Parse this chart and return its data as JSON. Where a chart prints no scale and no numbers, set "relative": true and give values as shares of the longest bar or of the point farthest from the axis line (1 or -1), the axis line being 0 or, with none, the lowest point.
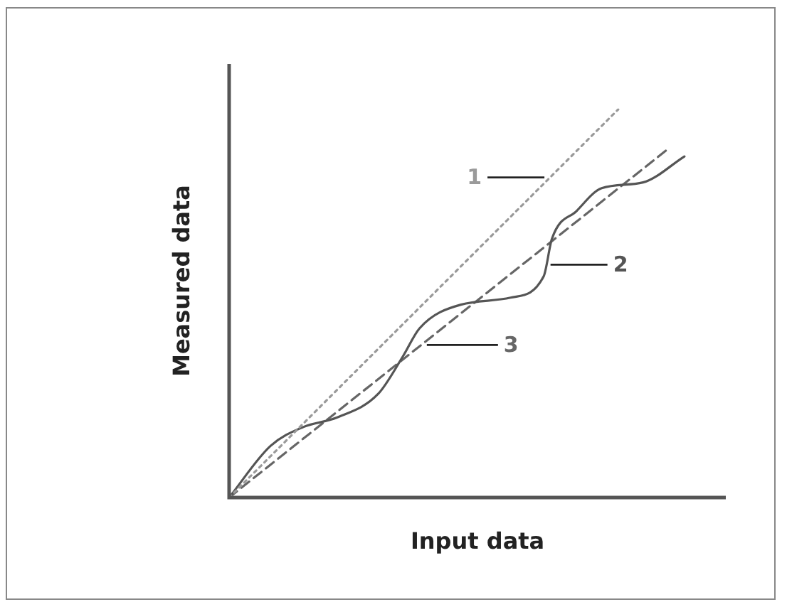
{
  "chart_data": {
    "type": "line",
    "relative": true,
    "xlabel": "Input data",
    "ylabel": "Measured data",
    "marker": "none",
    "categories": [
      null,
      null,
      null,
      null,
      null,
      null,
      null,
      null,
      null,
      null,
      null,
      null,
      null,
      null,
      null,
      null,
      null,
      null,
      null,
      null,
      null,
      null,
      null,
      null,
      null,
      null,
      null,
      null,
      null,
      null,
      null,
      null,
      null,
      null,
      null,
      null,
      null,
      null,
      null,
      null,
      null,
      null,
      null,
      null,
      null,
      null,
      null,
      null,
      null,
      null,
      null,
      null,
      null,
      null,
      null,
      null,
      null,
      null,
      null,
      null,
      null
    ],
    "series": [
      {
        "name": "1",
        "color": "#9a9a9a",
        "line_style": "dotted",
        "values": [
          0,
          null,
          null,
          null,
          null,
          null,
          null,
          null,
          null,
          null,
          null,
          null,
          null,
          null,
          null,
          null,
          null,
          null,
          null,
          null,
          null,
          null,
          null,
          null,
          null,
          null,
          null,
          null,
          null,
          null,
          null,
          null,
          null,
          null,
          null,
          null,
          null,
          null,
          null,
          null,
          null,
          null,
          null,
          null,
          null,
          null,
          null,
          1,
          null,
          null,
          null,
          null,
          null,
          null,
          null,
          null,
          null,
          null,
          null,
          null,
          null
        ]
      },
      {
        "name": "2",
        "color": "#555555",
        "line_style": "solid",
        "values": [
          0,
          null,
          null,
          null,
          null,
          0.133,
          null,
          null,
          null,
          0.182,
          null,
          null,
          null,
          0.206,
          null,
          null,
          null,
          null,
          0.267,
          null,
          null,
          0.364,
          null,
          0.436,
          null,
          null,
          null,
          null,
          0.497,
          null,
          null,
          null,
          null,
          null,
          0.515,
          null,
          null,
          null,
          0.57,
          0.667,
          null,
          null,
          0.739,
          null,
          null,
          0.797,
          null,
          null,
          null,
          null,
          0.812,
          null,
          null,
          null,
          null,
          0.879,
          null,
          null,
          null,
          null,
          null
        ]
      },
      {
        "name": "3",
        "color": "#666666",
        "line_style": "dashed",
        "values": [
          0,
          null,
          null,
          null,
          null,
          null,
          null,
          null,
          null,
          null,
          null,
          null,
          null,
          null,
          null,
          null,
          null,
          null,
          null,
          null,
          null,
          null,
          null,
          null,
          null,
          null,
          null,
          null,
          null,
          null,
          null,
          null,
          null,
          null,
          null,
          null,
          null,
          null,
          null,
          null,
          null,
          null,
          null,
          null,
          null,
          null,
          null,
          null,
          null,
          null,
          null,
          null,
          null,
          0.898,
          null,
          null,
          null,
          null,
          null,
          null,
          null
        ]
      }
    ]
  }
}
